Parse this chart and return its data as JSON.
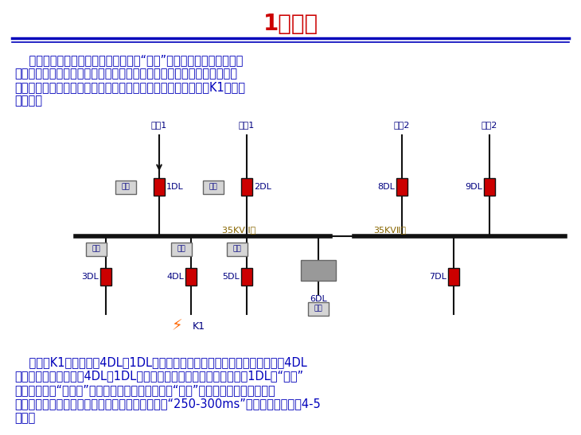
{
  "title": "1、引言",
  "title_color": "#CC0000",
  "title_fontsize": 20,
  "bg_color": "#FFFFFF",
  "text_color": "#0000BB",
  "text_fontsize": 10.5,
  "para1_lines": [
    "    传统继电保护装置大都是相互独立的“孤岛”，保护装置间尚未实现信",
    "息共享，更无法实现数据相互交换。当系统某点发生故障时，各相关继电",
    "保护仅依据自身保护特性和整定时限完成相应动作，以下图为例K1点故障",
    "进行分析"
  ],
  "para2_lines": [
    "    举例：K1点故障时，4DL、1DL均有故障电流流过，根据故障发生的区域，4DL",
    "应切除故障，由于流经4DL、1DL故障电流大小几乎相等，此时只有靠1DL的“时限”",
    "来保证保护的“选择性”问题。但现场情况是：保护“时限”往往是上级保护所限定，",
    "不是随意设定的。根据设计惯例，保护时限级差在“250-300ms”之间，保护层级在4-5",
    "之间。"
  ],
  "label_color": "#000080",
  "red_color": "#CC0000",
  "orange_color": "#FF6600",
  "bus_label_color": "#886600"
}
